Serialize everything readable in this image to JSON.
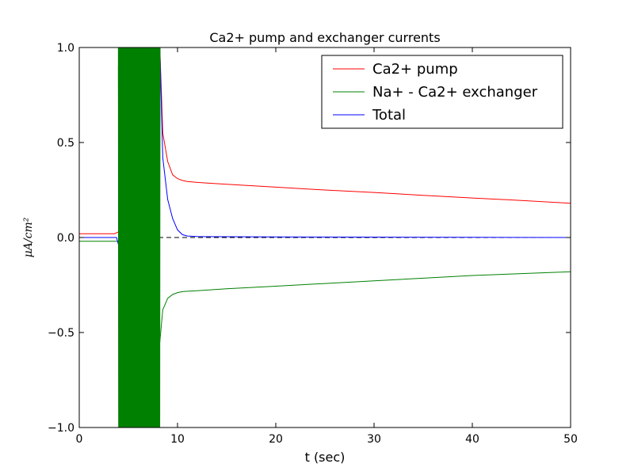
{
  "chart_data": {
    "type": "line",
    "title": "Ca2+ pump and exchanger currents",
    "xlabel": "t (sec)",
    "ylabel": "μA/cm²",
    "xlim": [
      0,
      50
    ],
    "ylim": [
      -1.0,
      1.0
    ],
    "x_ticks": [
      0,
      10,
      20,
      30,
      40,
      50
    ],
    "x_tick_labels": [
      "0",
      "10",
      "20",
      "30",
      "40",
      "50"
    ],
    "y_ticks": [
      -1.0,
      -0.5,
      0.0,
      0.5,
      1.0
    ],
    "y_tick_labels": [
      "−1.0",
      "−0.5",
      "0.0",
      "0.5",
      "1.0"
    ],
    "grid": false,
    "legend_position": "top-right",
    "reference_line": {
      "y": 0.0,
      "style": "dashed",
      "color": "#000000"
    },
    "oscillation_window": [
      4.0,
      8.2
    ],
    "series": [
      {
        "name": "Ca2+ pump",
        "color": "#ff0000",
        "x": [
          0,
          3.6,
          4.0,
          8.2,
          8.5,
          9,
          9.5,
          10,
          10.5,
          11,
          12,
          15,
          20,
          25,
          30,
          35,
          40,
          45,
          50
        ],
        "values": [
          0.02,
          0.02,
          0.03,
          1.0,
          0.55,
          0.4,
          0.33,
          0.31,
          0.3,
          0.295,
          0.29,
          0.28,
          0.265,
          0.25,
          0.237,
          0.222,
          0.208,
          0.195,
          0.18
        ]
      },
      {
        "name": "Na+ - Ca2+ exchanger",
        "color": "#008000",
        "x": [
          0,
          3.9,
          4.0,
          8.0,
          8.2,
          8.5,
          9,
          9.5,
          10,
          10.5,
          11,
          12,
          15,
          20,
          25,
          30,
          35,
          40,
          45,
          50
        ],
        "values": [
          -0.02,
          -0.02,
          -0.02,
          -1.0,
          -0.55,
          -0.38,
          -0.32,
          -0.3,
          -0.29,
          -0.285,
          -0.283,
          -0.28,
          -0.27,
          -0.256,
          -0.242,
          -0.228,
          -0.214,
          -0.2,
          -0.19,
          -0.18
        ]
      },
      {
        "name": "Total",
        "color": "#0000ff",
        "x": [
          0,
          3.8,
          3.95,
          4.0,
          8.2,
          8.5,
          9,
          9.5,
          10,
          10.5,
          11,
          12,
          15,
          20,
          30,
          40,
          50
        ],
        "values": [
          0.0,
          0.0,
          -0.03,
          -0.02,
          1.0,
          0.42,
          0.2,
          0.1,
          0.04,
          0.015,
          0.008,
          0.005,
          0.004,
          0.003,
          0.002,
          0.001,
          0.0
        ]
      }
    ]
  }
}
